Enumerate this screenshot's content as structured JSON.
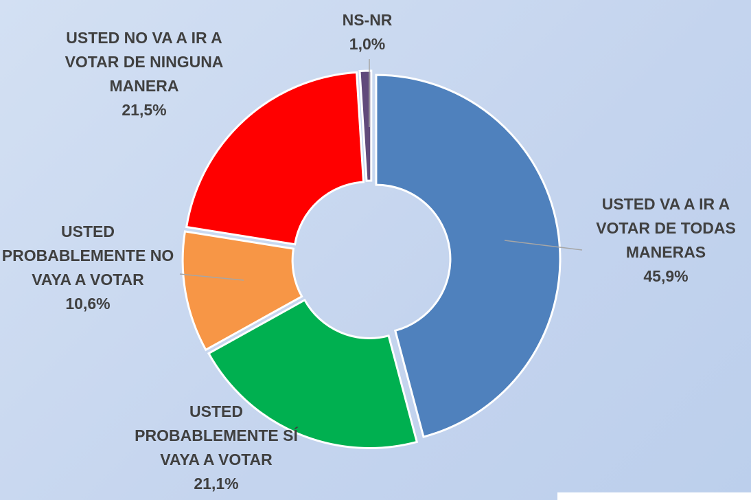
{
  "chart_data": {
    "type": "donut",
    "categories": [
      "USTED VA A IR A VOTAR DE TODAS MANERAS",
      "USTED PROBABLEMENTE SÍ VAYA A VOTAR",
      "USTED PROBABLEMENTE NO VAYA A VOTAR",
      "USTED NO VA A IR A VOTAR DE NINGUNA MANERA",
      "NS-NR"
    ],
    "values": [
      45.9,
      21.1,
      10.6,
      21.5,
      1.0
    ],
    "value_labels": [
      "45,9%",
      "21,1%",
      "10,6%",
      "21,5%",
      "1,0%"
    ],
    "colors": [
      "#4f81bd",
      "#00b050",
      "#f79646",
      "#ff0000",
      "#604a7b"
    ]
  }
}
